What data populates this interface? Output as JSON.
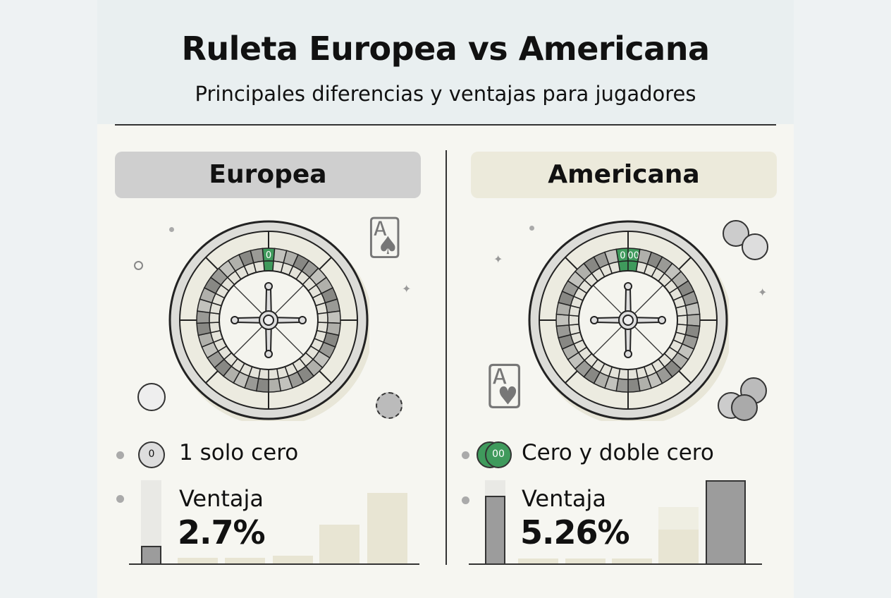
{
  "header": {
    "title": "Ruleta Europea vs Americana",
    "subtitle": "Principales diferencias y ventajas para jugadores"
  },
  "colors": {
    "green": "#3f9a5c",
    "dark_gray": "#9c9c9c",
    "beige": "#e8e5d3",
    "left_pill": "#cfcfcf",
    "right_pill": "#eceadb"
  },
  "european": {
    "name": "Europea",
    "zero_labels": [
      "0"
    ],
    "feature": "1 solo cero",
    "chip_label": "0",
    "advantage_label": "Ventaja",
    "advantage": "2.7%",
    "bars": [
      {
        "bg": 1.0,
        "level": 0.21,
        "style": "gray"
      },
      {
        "level": 0.07
      },
      {
        "level": 0.07
      },
      {
        "level": 0.09
      },
      {
        "level": 0.47
      },
      {
        "level": 0.85
      }
    ]
  },
  "american": {
    "name": "Americana",
    "zero_labels": [
      "0",
      "00"
    ],
    "feature": "Cero y doble cero",
    "chip_label": "00",
    "advantage_label": "Ventaja",
    "advantage": "5.26%",
    "bars": [
      {
        "bg": 1.0,
        "level": 0.81,
        "style": "gray"
      },
      {
        "level": 0.06
      },
      {
        "level": 0.06
      },
      {
        "level": 0.06
      },
      {
        "level": 0.68,
        "inner": 0.41
      },
      {
        "level": 1.0,
        "style": "gray"
      }
    ]
  }
}
